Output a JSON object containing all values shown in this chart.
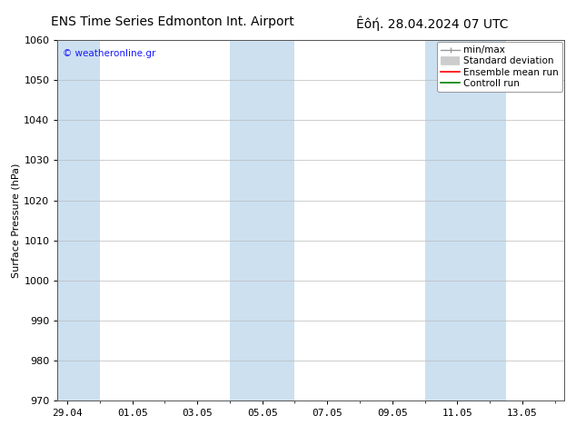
{
  "title_left": "ENS Time Series Edmonton Int. Airport",
  "title_right": "Êôή. 28.04.2024 07 UTC",
  "ylabel": "Surface Pressure (hPa)",
  "ylim": [
    970,
    1060
  ],
  "yticks": [
    970,
    980,
    990,
    1000,
    1010,
    1020,
    1030,
    1040,
    1050,
    1060
  ],
  "xtick_labels": [
    "29.04",
    "01.05",
    "03.05",
    "05.05",
    "07.05",
    "09.05",
    "11.05",
    "13.05"
  ],
  "xtick_positions": [
    0,
    2,
    4,
    6,
    8,
    10,
    12,
    14
  ],
  "xlim": [
    -0.3,
    15.3
  ],
  "shaded_bands": [
    {
      "start": -0.3,
      "end": 1.0
    },
    {
      "start": 5.0,
      "end": 7.0
    },
    {
      "start": 11.0,
      "end": 13.5
    }
  ],
  "band_color": "#cce0f0",
  "watermark_text": "© weatheronline.gr",
  "watermark_color": "#1a1aff",
  "legend_items": [
    {
      "label": "min/max",
      "color": "#999999",
      "lw": 1.0
    },
    {
      "label": "Standard deviation",
      "color": "#cccccc",
      "lw": 7
    },
    {
      "label": "Ensemble mean run",
      "color": "#ff0000",
      "lw": 1.2
    },
    {
      "label": "Controll run",
      "color": "#008000",
      "lw": 1.2
    }
  ],
  "bg_color": "#ffffff",
  "grid_color": "#bbbbbb",
  "title_fontsize": 10,
  "tick_fontsize": 8,
  "label_fontsize": 8,
  "legend_fontsize": 7.5
}
